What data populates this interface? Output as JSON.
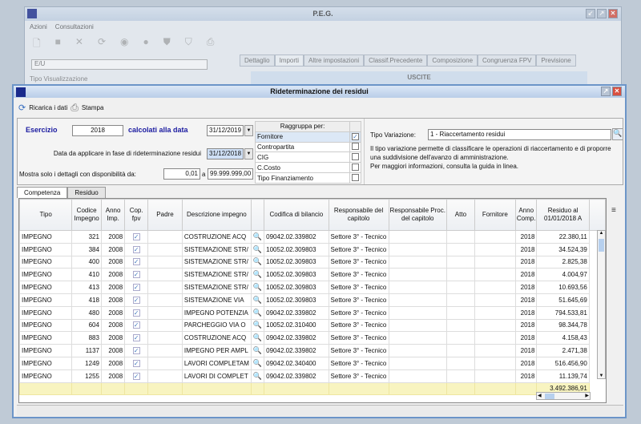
{
  "bg_window": {
    "title": "P.E.G.",
    "menu": [
      "Azioni",
      "Consultazioni"
    ],
    "filter_value": "E/U",
    "group_label": "Tipo Visualizzazione",
    "tabs": [
      "Dettaglio",
      "Importi",
      "Altre impostazioni",
      "Classif.Precedente",
      "Composizione",
      "Congruenza FPV",
      "Previsione"
    ],
    "active_tab": "Importi",
    "section": "USCITE"
  },
  "dialog": {
    "title": "Rideterminazione dei residui",
    "toolbar": {
      "reload": "Ricarica i dati",
      "print": "Stampa"
    },
    "form": {
      "esercizio_label": "Esercizio",
      "esercizio": "2018",
      "calc_label": "calcolati alla data",
      "calc_date": "31/12/2019",
      "apply_label": "Data da applicare in fase di rideterminazione residui",
      "apply_date": "31/12/2018",
      "range_label": "Mostra solo i dettagli con disponibilità da:",
      "range_from": "0,01",
      "range_sep": "a",
      "range_to": "99.999.999,00"
    },
    "group_by": {
      "header": "Raggruppa per:",
      "items": [
        {
          "label": "Fornitore",
          "checked": true
        },
        {
          "label": "Contropartita",
          "checked": false
        },
        {
          "label": "CIG",
          "checked": false
        },
        {
          "label": "C.Costo",
          "checked": false
        },
        {
          "label": "Tipo Finanziamento",
          "checked": false
        }
      ]
    },
    "tipo_variazione": {
      "label": "Tipo Variazione:",
      "value": "1 - Riaccertamento residui",
      "help1": "Il tipo variazione permette di classificare le operazioni di riaccertamento e di proporre",
      "help2": "una suddivisione dell'avanzo di amministrazione.",
      "help3": "Per maggiori informazioni, consulta la guida in linea."
    },
    "tabs": [
      "Competenza",
      "Residuo"
    ],
    "active_tab": "Competenza",
    "grid": {
      "columns": [
        "Tipo",
        "Codice Impegno",
        "Anno Imp.",
        "Cop. fpv",
        "Padre",
        "Descrizione impegno",
        "",
        "Codifica di bilancio",
        "Responsabile del capitolo",
        "Responsabile Proc. del capitolo",
        "Atto",
        "Fornitore",
        "Anno Comp.",
        "Residuo al 01/01/2018 A"
      ],
      "rows": [
        [
          "IMPEGNO",
          "321",
          "2008",
          "COSTRUZIONE ACQ",
          "09042.02.339802",
          "Settore 3° - Tecnico",
          "2018",
          "22.380,11"
        ],
        [
          "IMPEGNO",
          "384",
          "2008",
          "SISTEMAZIONE STR/",
          "10052.02.309803",
          "Settore 3° - Tecnico",
          "2018",
          "34.524,39"
        ],
        [
          "IMPEGNO",
          "400",
          "2008",
          "SISTEMAZIONE STR/",
          "10052.02.309803",
          "Settore 3° - Tecnico",
          "2018",
          "2.825,38"
        ],
        [
          "IMPEGNO",
          "410",
          "2008",
          "SISTEMAZIONE STR/",
          "10052.02.309803",
          "Settore 3° - Tecnico",
          "2018",
          "4.004,97"
        ],
        [
          "IMPEGNO",
          "413",
          "2008",
          "SISTEMAZIONE STR/",
          "10052.02.309803",
          "Settore 3° - Tecnico",
          "2018",
          "10.693,56"
        ],
        [
          "IMPEGNO",
          "418",
          "2008",
          "SISTEMAZIONE VIA",
          "10052.02.309803",
          "Settore 3° - Tecnico",
          "2018",
          "51.645,69"
        ],
        [
          "IMPEGNO",
          "480",
          "2008",
          "IMPEGNO POTENZIA",
          "09042.02.339802",
          "Settore 3° - Tecnico",
          "2018",
          "794.533,81"
        ],
        [
          "IMPEGNO",
          "604",
          "2008",
          "PARCHEGGIO VIA O",
          "10052.02.310400",
          "Settore 3° - Tecnico",
          "2018",
          "98.344,78"
        ],
        [
          "IMPEGNO",
          "883",
          "2008",
          "COSTRUZIONE ACQ",
          "09042.02.339802",
          "Settore 3° - Tecnico",
          "2018",
          "4.158,43"
        ],
        [
          "IMPEGNO",
          "1137",
          "2008",
          "IMPEGNO PER AMPL",
          "09042.02.339802",
          "Settore 3° - Tecnico",
          "2018",
          "2.471,38"
        ],
        [
          "IMPEGNO",
          "1249",
          "2008",
          "LAVORI COMPLETAM",
          "09042.02.340400",
          "Settore 3° - Tecnico",
          "2018",
          "516.456,90"
        ],
        [
          "IMPEGNO",
          "1255",
          "2008",
          "LAVORI DI COMPLET",
          "09042.02.339802",
          "Settore 3° - Tecnico",
          "2018",
          "11.139,74"
        ]
      ],
      "total": "3.492.386,91"
    }
  }
}
